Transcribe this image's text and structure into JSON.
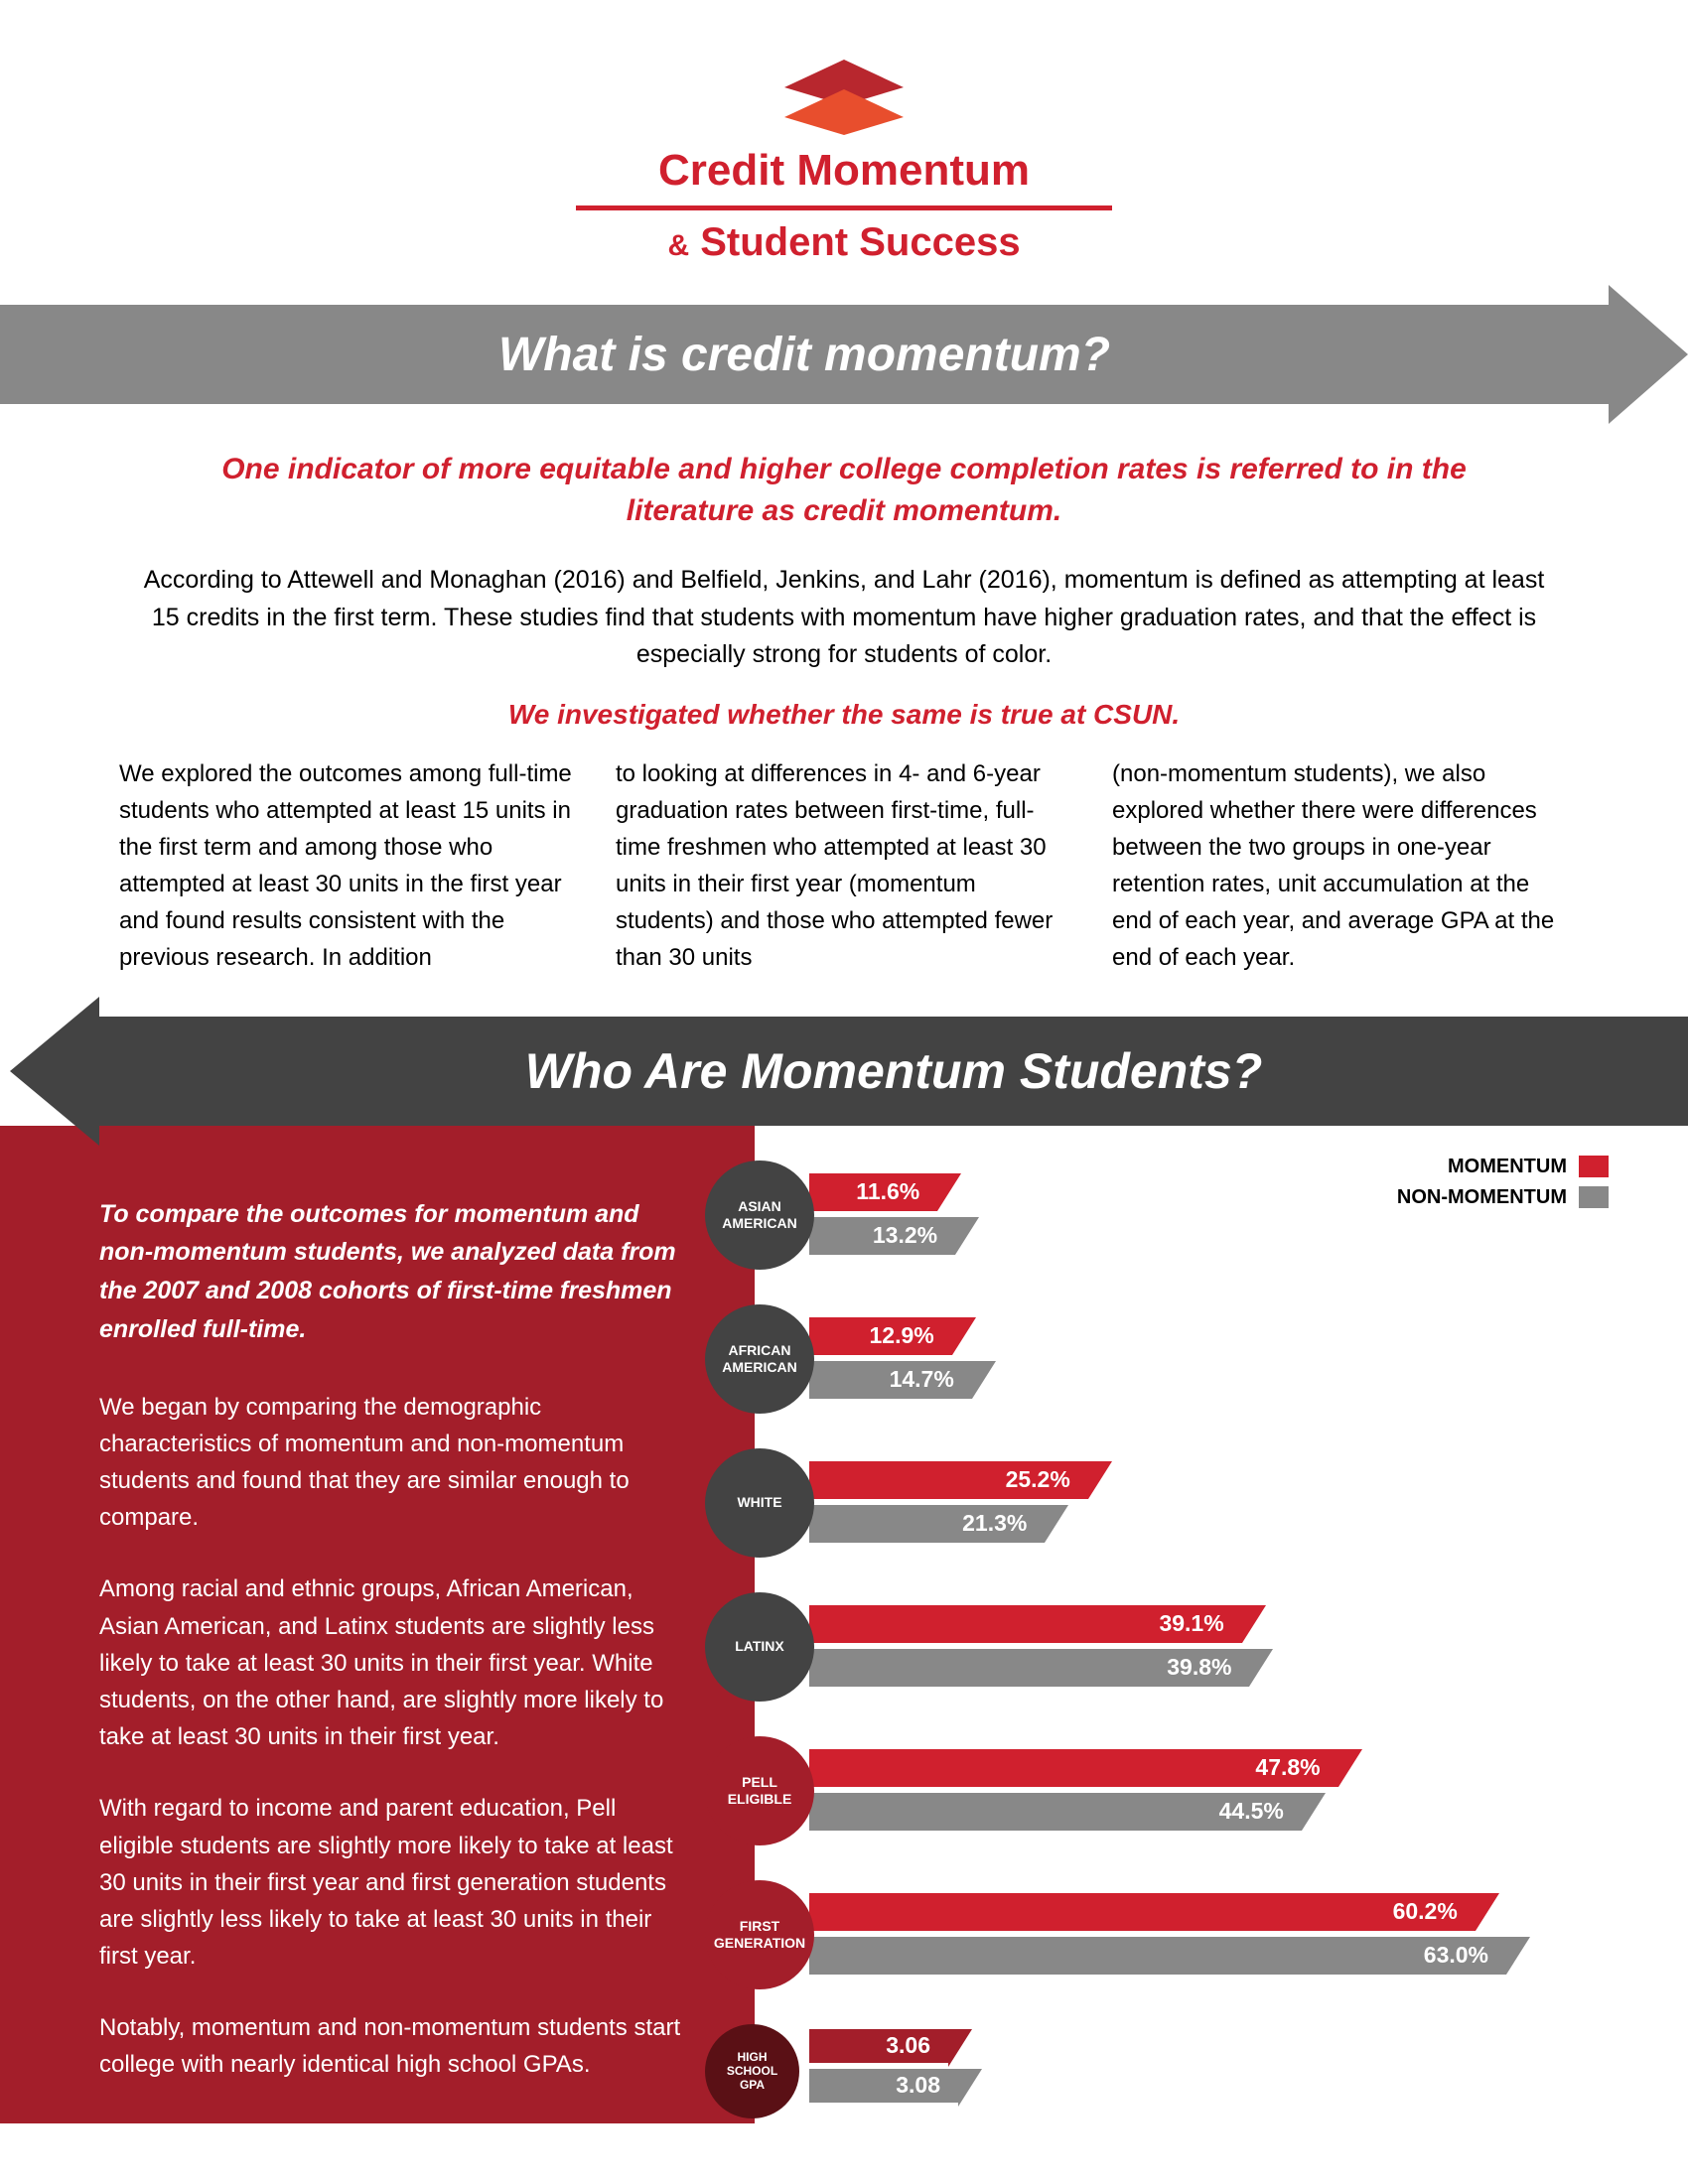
{
  "header": {
    "title1": "Credit Momentum",
    "title2_amp": "&",
    "title2": "Student Success"
  },
  "section1": {
    "banner": "What is credit momentum?",
    "lead": "One indicator of more equitable and higher college completion rates is referred to in the literature as credit momentum.",
    "para": "According to Attewell and Monaghan (2016) and Belfield, Jenkins, and Lahr (2016), momentum is defined as attempting at least 15 credits in the first term. These studies find that students with momentum have higher graduation rates, and that the effect is especially strong for students of color.",
    "lead2": "We investigated whether the same is true at CSUN.",
    "col1": "We explored the outcomes among full-time students who attempted at least 15 units in the first term and among those who attempted at least 30 units in the first year and found results consistent with the previous research. In addition",
    "col2": "to looking at differences in 4- and 6-year graduation rates between first-time, full-time freshmen who attempted at least 30 units in their first year (momentum students) and those who attempted fewer than 30 units",
    "col3": "(non-momentum students), we also explored whether there were differences between the two groups in one-year retention rates, unit accumulation at the end of each year, and average GPA at the end of each year."
  },
  "section2": {
    "banner": "Who Are Momentum Students?",
    "lead": "To compare the outcomes for momentum and non-momentum students, we analyzed data from the 2007 and 2008 cohorts of first-time freshmen enrolled full-time.",
    "p1": "We began by comparing the demographic characteristics of momentum and non-momentum students and found that they are similar enough to compare.",
    "p2": "Among racial and ethnic groups, African American, Asian American, and Latinx students are slightly less likely to take at least 30 units in their first year. White students, on the other hand, are slightly more likely to take at least 30 units in their first year.",
    "p3": "With regard to income and parent education, Pell eligible students are slightly more likely to take at least 30 units in their first year and first generation students are slightly less likely to take at least 30 units in their first year.",
    "p4": "Notably, momentum and non-momentum students start college with nearly identical high school GPAs."
  },
  "legend": {
    "momentum": "MOMENTUM",
    "non": "NON-MOMENTUM"
  },
  "colors": {
    "momentum": "#d0202e",
    "non": "#888888",
    "dark": "#434343",
    "darkred": "#a31e2a"
  },
  "chart": {
    "max_pct": 70,
    "rows": [
      {
        "label": "ASIAN AMERICAN",
        "m": 11.6,
        "n": 13.2,
        "circle": "dark",
        "m_text": "11.6%",
        "n_text": "13.2%"
      },
      {
        "label": "AFRICAN AMERICAN",
        "m": 12.9,
        "n": 14.7,
        "circle": "dark",
        "m_text": "12.9%",
        "n_text": "14.7%"
      },
      {
        "label": "WHITE",
        "m": 25.2,
        "n": 21.3,
        "circle": "dark",
        "m_text": "25.2%",
        "n_text": "21.3%"
      },
      {
        "label": "LATINX",
        "m": 39.1,
        "n": 39.8,
        "circle": "dark",
        "m_text": "39.1%",
        "n_text": "39.8%"
      },
      {
        "label": "PELL ELIGIBLE",
        "m": 47.8,
        "n": 44.5,
        "circle": "red",
        "m_text": "47.8%",
        "n_text": "44.5%"
      },
      {
        "label": "FIRST GENERATION",
        "m": 60.2,
        "n": 63.0,
        "circle": "red",
        "m_text": "60.2%",
        "n_text": "63.0%"
      }
    ],
    "gpa": {
      "label": "HIGH SCHOOL GPA",
      "m": 3.06,
      "n": 3.08,
      "m_text": "3.06",
      "n_text": "3.08",
      "scale": 4,
      "circle": "darkred"
    }
  }
}
